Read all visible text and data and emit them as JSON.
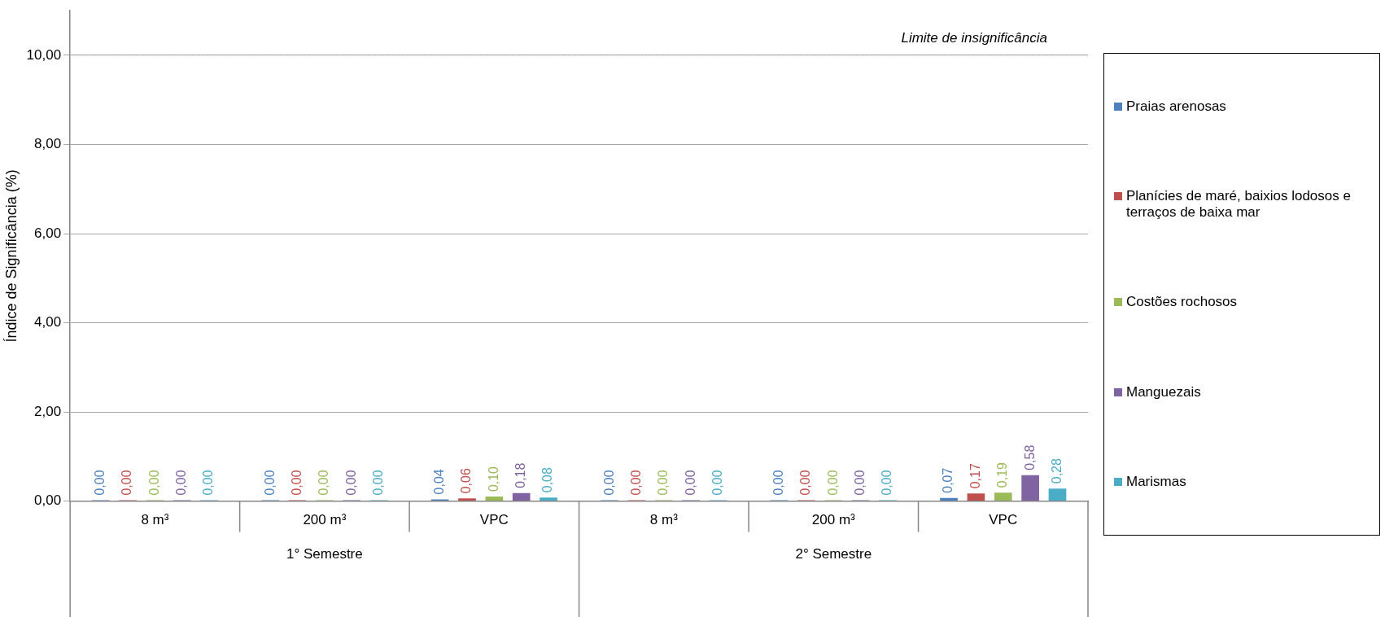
{
  "chart_data": {
    "type": "bar",
    "ylabel": "Índice de Significância (%)",
    "categories": [
      "8 m³",
      "200 m³",
      "VPC",
      "8 m³",
      "200 m³",
      "VPC"
    ],
    "series": [
      {
        "name": "Praias arenosas",
        "color": "#4f81bd",
        "values": [
          0,
          0,
          0.04,
          0,
          0,
          0.07
        ],
        "value_labels": [
          "0,00",
          "0,00",
          "0,04",
          "0,00",
          "0,00",
          "0,07"
        ]
      },
      {
        "name": "Planícies de maré, baixios lodosos e terraços de baixa mar",
        "color": "#c0504d",
        "values": [
          0,
          0,
          0.06,
          0,
          0,
          0.17
        ],
        "value_labels": [
          "0,00",
          "0,00",
          "0,06",
          "0,00",
          "0,00",
          "0,17"
        ]
      },
      {
        "name": "Costões rochosos",
        "color": "#9bbb59",
        "values": [
          0,
          0,
          0.1,
          0,
          0,
          0.19
        ],
        "value_labels": [
          "0,00",
          "0,00",
          "0,10",
          "0,00",
          "0,00",
          "0,19"
        ]
      },
      {
        "name": "Manguezais",
        "color": "#8064a2",
        "values": [
          0,
          0,
          0.18,
          0,
          0,
          0.58
        ],
        "value_labels": [
          "0,00",
          "0,00",
          "0,18",
          "0,00",
          "0,00",
          "0,58"
        ]
      },
      {
        "name": "Marismas",
        "color": "#4bacc6",
        "values": [
          0,
          0,
          0.08,
          0,
          0,
          0.28
        ],
        "value_labels": [
          "0,00",
          "0,00",
          "0,08",
          "0,00",
          "0,00",
          "0,28"
        ]
      }
    ],
    "ylim": [
      0,
      11
    ],
    "yticks": [
      {
        "value": 0,
        "label": "0,00"
      },
      {
        "value": 2,
        "label": "2,00"
      },
      {
        "value": 4,
        "label": "4,00"
      },
      {
        "value": 6,
        "label": "6,00"
      },
      {
        "value": 8,
        "label": "8,00"
      },
      {
        "value": 10,
        "label": "10,00"
      }
    ],
    "ref_lines": [
      {
        "axis": "y",
        "value": 10,
        "label": "Limite de insignificância",
        "color": "#a6a6a6",
        "line_style": "dotted"
      }
    ],
    "annotations": [
      "1° Semestre",
      "2° Semestre"
    ],
    "grid": "y",
    "legend": "right"
  }
}
